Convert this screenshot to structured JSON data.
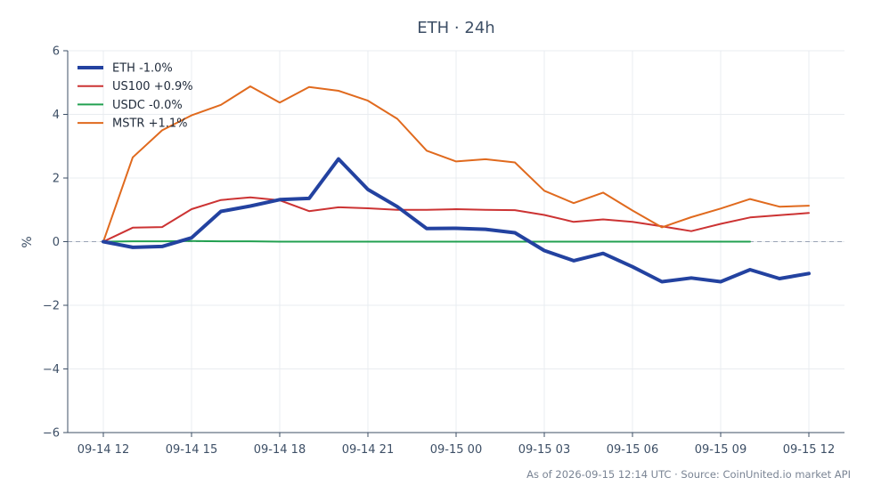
{
  "chart_data": {
    "type": "line",
    "title": "ETH · 24h",
    "ylabel": "%",
    "xlabel": "",
    "ylim": [
      -6,
      6
    ],
    "yticks": [
      6,
      4,
      2,
      0,
      -2,
      -4,
      -6
    ],
    "ytick_labels": [
      "6",
      "4",
      "2",
      "0",
      "−2",
      "−4",
      "−6"
    ],
    "xticks": [
      0,
      3,
      6,
      9,
      12,
      15,
      18,
      21,
      24
    ],
    "xtick_labels": [
      "09-14 12",
      "09-14 15",
      "09-14 18",
      "09-14 21",
      "09-15 00",
      "09-15 03",
      "09-15 06",
      "09-15 09",
      "09-15 12"
    ],
    "grid": true,
    "legend_position": "top-left",
    "series": [
      {
        "name": "ETH -1.0%",
        "color": "#2342a0",
        "x": [
          0,
          1,
          2,
          3,
          4,
          5,
          6,
          7,
          8,
          9,
          10,
          11,
          12,
          13,
          14,
          15,
          16,
          17,
          18,
          19,
          20,
          21,
          22,
          23,
          24
        ],
        "values": [
          0,
          -0.18,
          -0.15,
          0.12,
          0.95,
          1.12,
          1.32,
          1.36,
          2.6,
          1.64,
          1.1,
          0.41,
          0.42,
          0.39,
          0.28,
          -0.28,
          -0.6,
          -0.37,
          -0.79,
          -1.26,
          -1.14,
          -1.26,
          -0.88,
          -1.16,
          -1.0
        ]
      },
      {
        "name": "US100 +0.9%",
        "color": "#cc3333",
        "x": [
          0,
          1,
          2,
          3,
          4,
          5,
          6,
          7,
          8,
          9,
          10,
          11,
          12,
          13,
          14,
          15,
          16,
          17,
          18,
          19,
          20,
          21,
          22,
          23,
          24
        ],
        "values": [
          0,
          0.44,
          0.46,
          1.02,
          1.31,
          1.39,
          1.3,
          0.96,
          1.08,
          1.05,
          1.0,
          1.0,
          1.02,
          1.0,
          0.99,
          0.84,
          0.62,
          0.7,
          0.62,
          0.48,
          0.33,
          0.56,
          0.76,
          0.83,
          0.9
        ]
      },
      {
        "name": "USDC -0.0%",
        "color": "#22a050",
        "x": [
          0,
          1,
          2,
          3,
          4,
          5,
          6,
          7,
          8,
          9,
          10,
          11,
          12,
          13,
          14,
          15,
          16,
          17,
          18,
          19,
          20,
          21,
          22
        ],
        "values": [
          0,
          0.01,
          0.01,
          0.02,
          0.01,
          0.01,
          0.0,
          0.0,
          0.0,
          0.0,
          0.0,
          0.0,
          0.0,
          0.0,
          0.0,
          0.0,
          0.0,
          0.0,
          0.0,
          0.0,
          0.0,
          0.0,
          0.0
        ]
      },
      {
        "name": "MSTR +1.1%",
        "color": "#e06a1e",
        "x": [
          0,
          1,
          2,
          3,
          4,
          5,
          6,
          7,
          8,
          9,
          10,
          11,
          12,
          13,
          14,
          15,
          16,
          17,
          18,
          19,
          20,
          21,
          22,
          23,
          24
        ],
        "values": [
          0,
          2.65,
          3.5,
          3.97,
          4.3,
          4.88,
          4.37,
          4.86,
          4.74,
          4.43,
          3.86,
          2.86,
          2.52,
          2.59,
          2.49,
          1.6,
          1.21,
          1.54,
          0.98,
          0.45,
          0.77,
          1.04,
          1.34,
          1.1,
          1.13
        ]
      }
    ]
  },
  "footer": {
    "source_note": "As of 2026-09-15 12:14 UTC · Source: CoinUnited.io market API"
  }
}
